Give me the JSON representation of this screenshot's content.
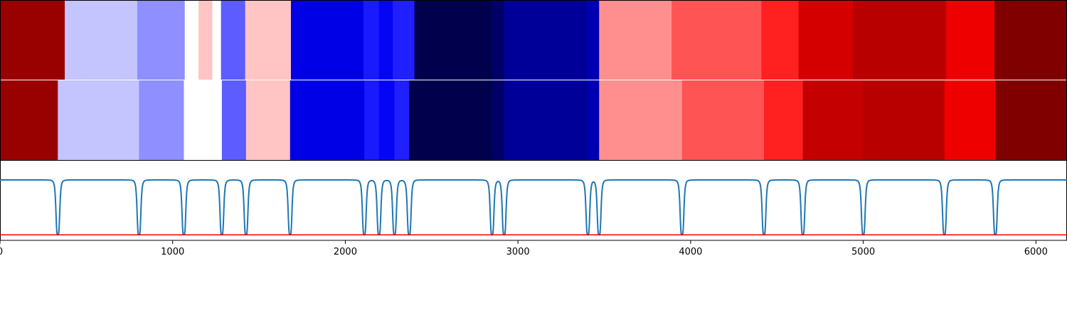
{
  "chart_data": {
    "type": "heatmap",
    "title": "",
    "xlabel": "",
    "ylabel": "",
    "xlim": [
      0,
      6180
    ],
    "x_ticks": [
      0,
      1000,
      2000,
      3000,
      4000,
      5000,
      6000
    ],
    "x_tick_labels": [
      "0",
      "1000",
      "2000",
      "3000",
      "4000",
      "5000",
      "6000"
    ],
    "colormap": "seismic",
    "rows": [
      {
        "segments": [
          {
            "start": 0,
            "end": 375,
            "color": "#990000"
          },
          {
            "start": 375,
            "end": 795,
            "color": "#c4c4ff"
          },
          {
            "start": 795,
            "end": 1070,
            "color": "#8f8fff"
          },
          {
            "start": 1070,
            "end": 1150,
            "color": "#ffffff"
          },
          {
            "start": 1150,
            "end": 1230,
            "color": "#ffc4c4"
          },
          {
            "start": 1230,
            "end": 1280,
            "color": "#ffffff"
          },
          {
            "start": 1280,
            "end": 1420,
            "color": "#5c5cff"
          },
          {
            "start": 1420,
            "end": 1685,
            "color": "#ffc4c4"
          },
          {
            "start": 1685,
            "end": 2105,
            "color": "#0000e6"
          },
          {
            "start": 2105,
            "end": 2195,
            "color": "#1a1aff"
          },
          {
            "start": 2195,
            "end": 2275,
            "color": "#0505f5"
          },
          {
            "start": 2275,
            "end": 2400,
            "color": "#2020ff"
          },
          {
            "start": 2400,
            "end": 2850,
            "color": "#00004d"
          },
          {
            "start": 2850,
            "end": 2920,
            "color": "#000066"
          },
          {
            "start": 2920,
            "end": 3400,
            "color": "#000099"
          },
          {
            "start": 3400,
            "end": 3470,
            "color": "#0000b3"
          },
          {
            "start": 3470,
            "end": 3890,
            "color": "#ff8f8f"
          },
          {
            "start": 3890,
            "end": 4410,
            "color": "#ff5454"
          },
          {
            "start": 4410,
            "end": 4625,
            "color": "#ff2020"
          },
          {
            "start": 4625,
            "end": 4940,
            "color": "#d40000"
          },
          {
            "start": 4940,
            "end": 5480,
            "color": "#b80000"
          },
          {
            "start": 5480,
            "end": 5760,
            "color": "#ee0000"
          },
          {
            "start": 5760,
            "end": 6180,
            "color": "#800000"
          }
        ]
      },
      {
        "segments": [
          {
            "start": 0,
            "end": 335,
            "color": "#990000"
          },
          {
            "start": 335,
            "end": 805,
            "color": "#c4c4ff"
          },
          {
            "start": 805,
            "end": 1065,
            "color": "#8f8fff"
          },
          {
            "start": 1065,
            "end": 1285,
            "color": "#ffffff"
          },
          {
            "start": 1285,
            "end": 1425,
            "color": "#5c5cff"
          },
          {
            "start": 1425,
            "end": 1680,
            "color": "#ffc4c4"
          },
          {
            "start": 1680,
            "end": 2110,
            "color": "#0000e6"
          },
          {
            "start": 2110,
            "end": 2195,
            "color": "#1a1aff"
          },
          {
            "start": 2195,
            "end": 2285,
            "color": "#0505f5"
          },
          {
            "start": 2285,
            "end": 2370,
            "color": "#2020ff"
          },
          {
            "start": 2370,
            "end": 2850,
            "color": "#00004d"
          },
          {
            "start": 2850,
            "end": 2920,
            "color": "#000066"
          },
          {
            "start": 2920,
            "end": 3405,
            "color": "#000099"
          },
          {
            "start": 3405,
            "end": 3470,
            "color": "#0000b3"
          },
          {
            "start": 3470,
            "end": 3950,
            "color": "#ff8f8f"
          },
          {
            "start": 3950,
            "end": 4425,
            "color": "#ff5454"
          },
          {
            "start": 4425,
            "end": 4650,
            "color": "#ff2020"
          },
          {
            "start": 4650,
            "end": 5000,
            "color": "#c40000"
          },
          {
            "start": 5000,
            "end": 5470,
            "color": "#b80000"
          },
          {
            "start": 5470,
            "end": 5765,
            "color": "#ee0000"
          },
          {
            "start": 5765,
            "end": 6180,
            "color": "#800000"
          }
        ]
      }
    ],
    "series": [
      {
        "type": "line",
        "color": "#1f77b4",
        "ylim": [
          -1.1,
          0.35
        ],
        "baseline": 0,
        "dip_depth": -1.0,
        "dip_positions": [
          335,
          805,
          1065,
          1285,
          1425,
          1680,
          2110,
          2195,
          2285,
          2370,
          2850,
          2920,
          3405,
          3470,
          3950,
          4425,
          4650,
          5000,
          5470,
          5765
        ]
      },
      {
        "type": "hline",
        "color": "#ff0000",
        "ylim": [
          -1.1,
          0.35
        ],
        "y": -1.0
      }
    ],
    "grid": false,
    "legend": "none"
  }
}
